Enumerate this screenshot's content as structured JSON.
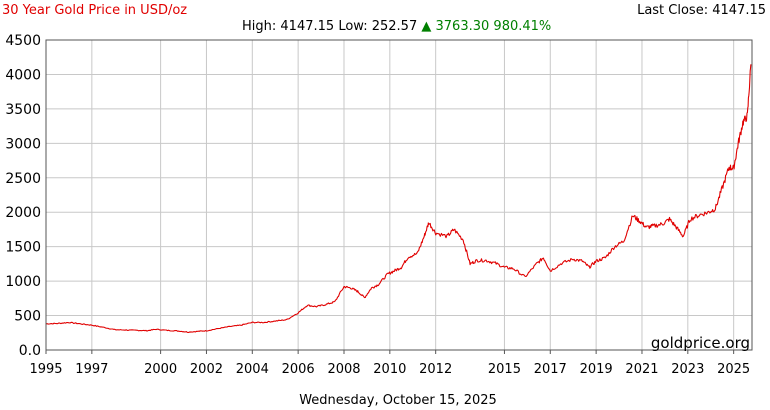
{
  "chart_data": {
    "type": "line",
    "title": "30 Year Gold Price in USD/oz",
    "stats": {
      "high_label": "High:",
      "high": "4147.15",
      "low_label": "Low:",
      "low": "252.57",
      "arrow": "▲",
      "change": "3763.30",
      "change_pct": "980.41%"
    },
    "last_close_label": "Last Close:",
    "last_close": "4147.15",
    "watermark": "goldprice.org",
    "date_label": "Wednesday, October 15, 2025",
    "xlabel": "",
    "ylabel": "",
    "xlim": [
      1995.0,
      2025.8
    ],
    "ylim": [
      0,
      4500
    ],
    "x_ticks": [
      1995,
      1997,
      2000,
      2002,
      2004,
      2006,
      2008,
      2010,
      2012,
      2015,
      2017,
      2019,
      2021,
      2023,
      2025
    ],
    "x_tick_labels": [
      "1995",
      "1997",
      "2000",
      "2002",
      "2004",
      "2006",
      "2008",
      "2010",
      "2012",
      "2015",
      "2017",
      "2019",
      "2021",
      "2023",
      "2025"
    ],
    "y_ticks": [
      0,
      500,
      1000,
      1500,
      2000,
      2500,
      3000,
      3500,
      4000,
      4500
    ],
    "y_tick_labels": [
      "0.0",
      "500",
      "1000",
      "1500",
      "2000",
      "2500",
      "3000",
      "3500",
      "4000",
      "4500"
    ],
    "grid": true,
    "legend": "none",
    "colors": {
      "line": "#e00000",
      "title": "#e00000",
      "up": "#008000",
      "grid": "#c8c8c8"
    },
    "series": [
      {
        "x": [
          1995.0,
          1995.5,
          1996.0,
          1996.5,
          1997.0,
          1997.5,
          1998.0,
          1998.5,
          1999.0,
          1999.4,
          1999.8,
          2000.3,
          2000.8,
          2001.2,
          2001.6,
          2002.0,
          2002.5,
          2003.0,
          2003.5,
          2004.0,
          2004.5,
          2005.0,
          2005.5,
          2006.0,
          2006.4,
          2006.8,
          2007.2,
          2007.6,
          2008.0,
          2008.3,
          2008.6,
          2008.9,
          2009.2,
          2009.5,
          2009.9,
          2010.2,
          2010.5,
          2010.8,
          2011.2,
          2011.5,
          2011.7,
          2012.0,
          2012.5,
          2012.8,
          2013.2,
          2013.5,
          2013.8,
          2014.2,
          2014.6,
          2015.0,
          2015.4,
          2015.9,
          2016.4,
          2016.7,
          2017.0,
          2017.5,
          2018.0,
          2018.4,
          2018.7,
          2019.0,
          2019.4,
          2019.8,
          2020.2,
          2020.6,
          2020.9,
          2021.2,
          2021.5,
          2021.9,
          2022.2,
          2022.5,
          2022.8,
          2023.1,
          2023.5,
          2023.9,
          2024.2,
          2024.5,
          2024.8,
          2025.0,
          2025.2,
          2025.4,
          2025.6,
          2025.75
        ],
        "y": [
          380,
          385,
          400,
          380,
          360,
          330,
          295,
          290,
          285,
          280,
          300,
          285,
          275,
          260,
          270,
          280,
          310,
          340,
          360,
          400,
          400,
          420,
          440,
          540,
          650,
          630,
          660,
          700,
          920,
          900,
          850,
          760,
          900,
          950,
          1100,
          1150,
          1200,
          1350,
          1400,
          1650,
          1850,
          1700,
          1650,
          1750,
          1600,
          1250,
          1300,
          1300,
          1260,
          1200,
          1180,
          1060,
          1250,
          1340,
          1150,
          1260,
          1320,
          1290,
          1200,
          1290,
          1340,
          1500,
          1580,
          1950,
          1870,
          1780,
          1800,
          1830,
          1900,
          1780,
          1650,
          1900,
          1960,
          2000,
          2050,
          2350,
          2650,
          2640,
          3000,
          3300,
          3400,
          4147.15
        ]
      }
    ]
  }
}
